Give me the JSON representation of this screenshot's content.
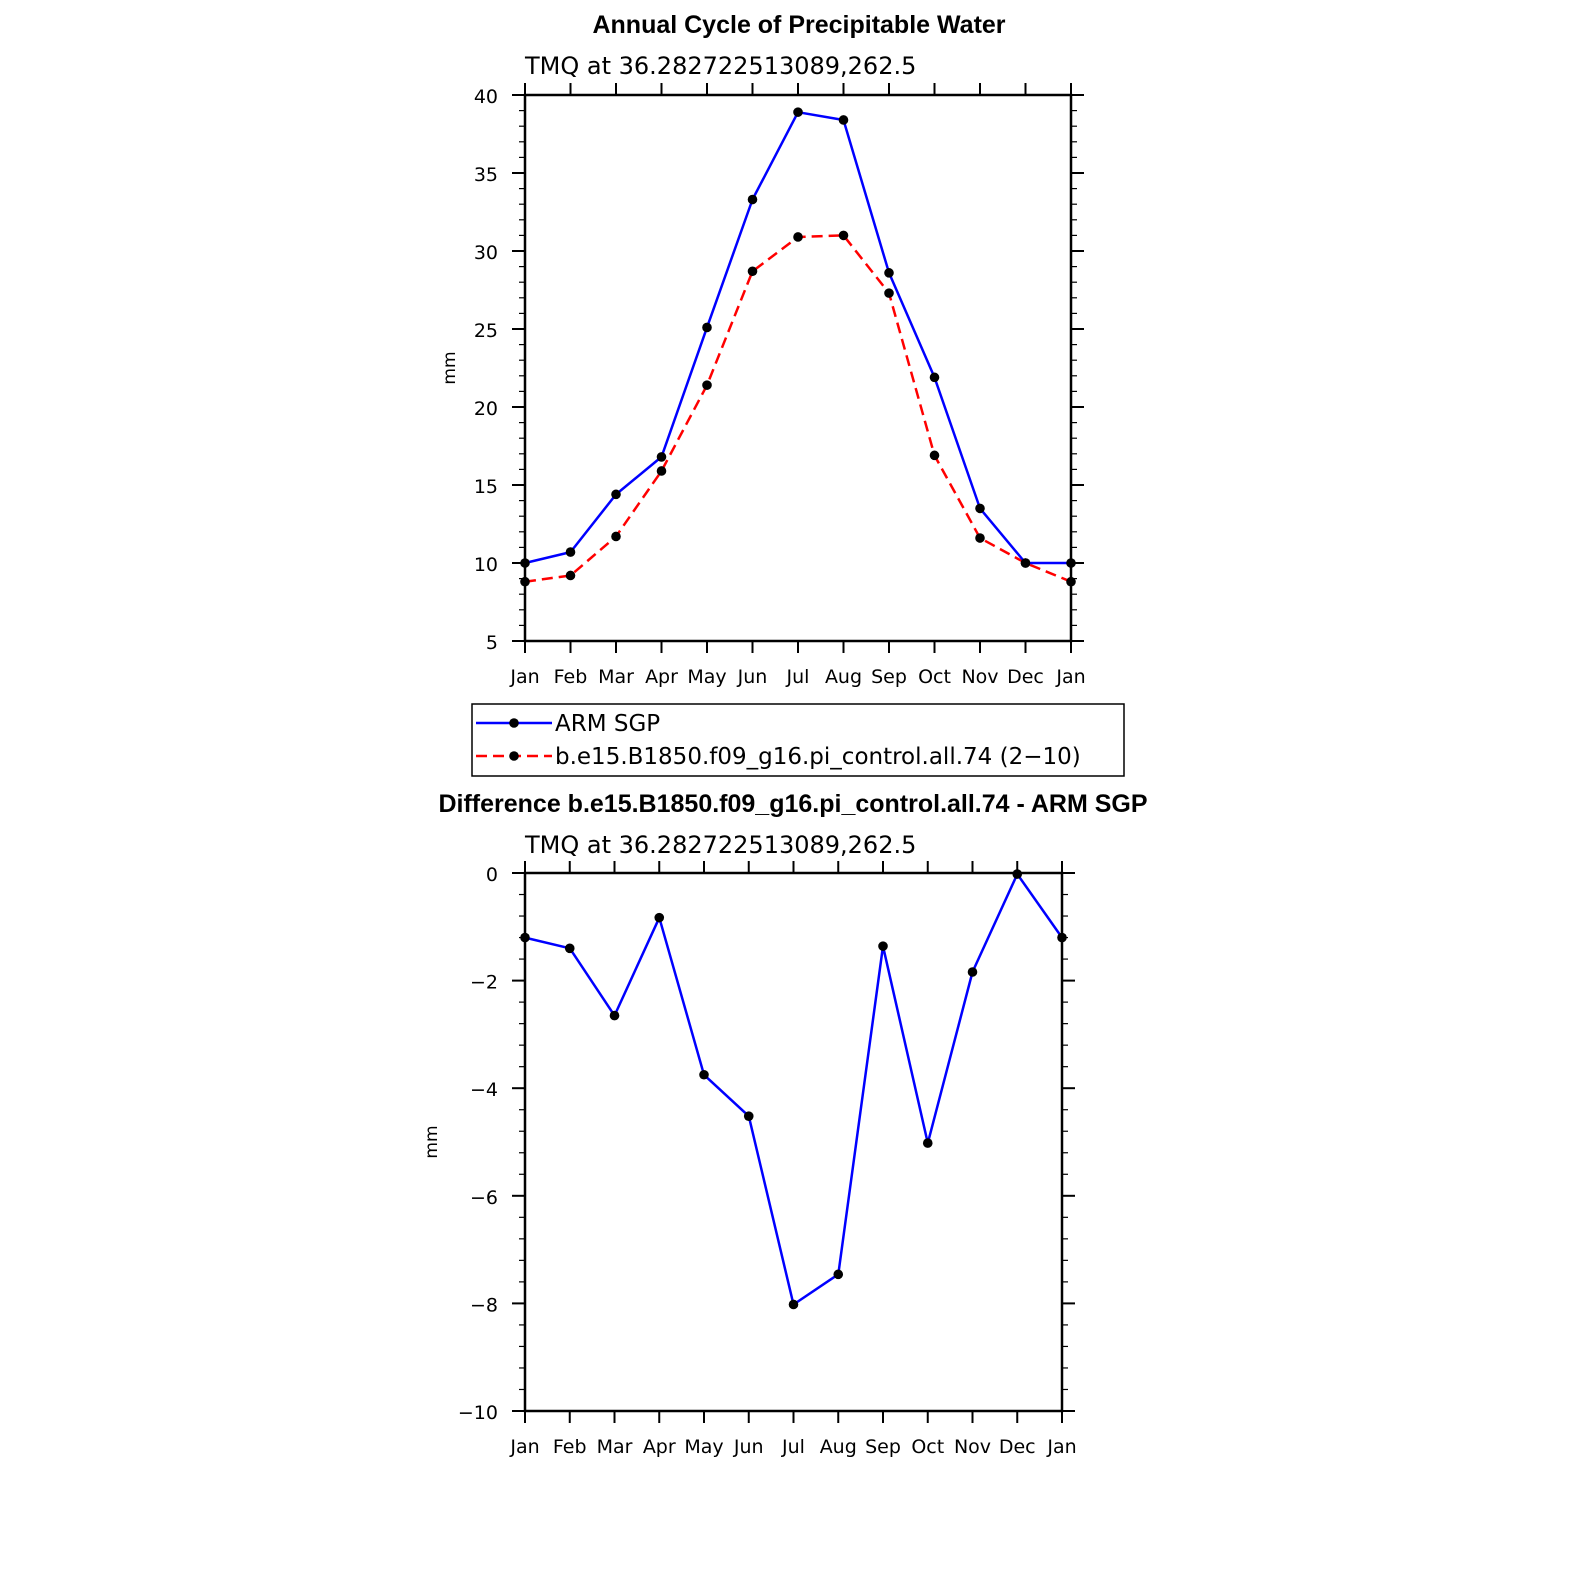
{
  "chart_data": [
    {
      "type": "line",
      "title": "Annual Cycle of Precipitable Water",
      "subtitle": "TMQ  at  36.282722513089,262.5",
      "xlabel": "",
      "ylabel": "mm",
      "categories": [
        "Jan",
        "Feb",
        "Mar",
        "Apr",
        "May",
        "Jun",
        "Jul",
        "Aug",
        "Sep",
        "Oct",
        "Nov",
        "Dec",
        "Jan"
      ],
      "ylim": [
        5,
        40
      ],
      "yticks": [
        5,
        10,
        15,
        20,
        25,
        30,
        35,
        40
      ],
      "ytick_labels": [
        "5",
        "10",
        "15",
        "20",
        "25",
        "30",
        "35",
        "40"
      ],
      "grid": false,
      "series": [
        {
          "name": "ARM  SGP",
          "color": "#0000ff",
          "dash": "solid",
          "values": [
            10.0,
            10.7,
            14.4,
            16.8,
            25.1,
            33.3,
            38.9,
            38.4,
            28.6,
            21.9,
            13.5,
            10.0,
            10.0
          ]
        },
        {
          "name": "b.e15.B1850.f09_g16.pi_control.all.74  (2−10)",
          "color": "#ff0000",
          "dash": "dashed",
          "values": [
            8.8,
            9.2,
            11.7,
            15.9,
            21.4,
            28.7,
            30.9,
            31.0,
            27.3,
            16.9,
            11.6,
            10.0,
            8.8
          ]
        }
      ],
      "marker_color": "#000000"
    },
    {
      "type": "line",
      "title": "Difference b.e15.B1850.f09_g16.pi_control.all.74 - ARM SGP",
      "subtitle": "TMQ  at  36.282722513089,262.5",
      "xlabel": "",
      "ylabel": "mm",
      "categories": [
        "Jan",
        "Feb",
        "Mar",
        "Apr",
        "May",
        "Jun",
        "Jul",
        "Aug",
        "Sep",
        "Oct",
        "Nov",
        "Dec",
        "Jan"
      ],
      "ylim": [
        -10,
        0
      ],
      "yticks": [
        -10,
        -8,
        -6,
        -4,
        -2,
        0
      ],
      "ytick_labels": [
        "−10",
        "−8",
        "−6",
        "−4",
        "−2",
        "0"
      ],
      "grid": false,
      "series": [
        {
          "color": "#0000ff",
          "dash": "solid",
          "values": [
            -1.2,
            -1.4,
            -2.65,
            -0.83,
            -3.75,
            -4.52,
            -8.02,
            -7.46,
            -1.36,
            -5.02,
            -1.84,
            -0.02,
            -1.2
          ]
        }
      ],
      "marker_color": "#000000"
    }
  ]
}
